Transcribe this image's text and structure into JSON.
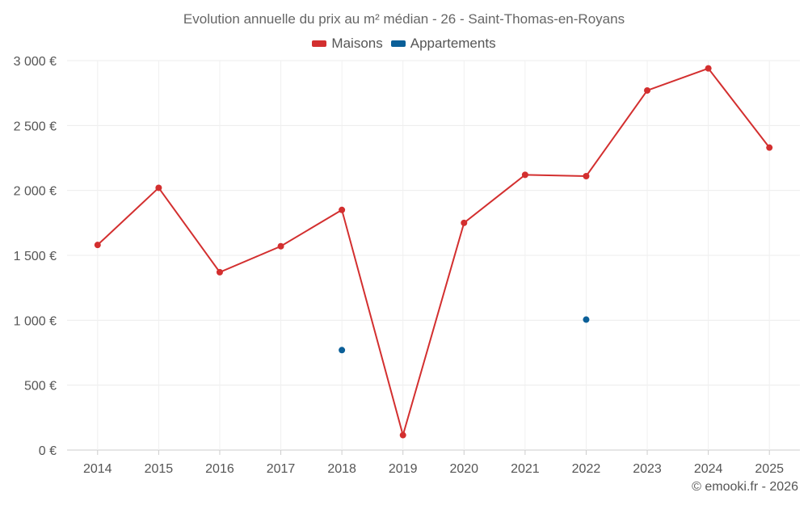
{
  "chart_data": {
    "type": "line",
    "title": "Evolution annuelle du prix au m² médian - 26 - Saint-Thomas-en-Royans",
    "categories": [
      "2014",
      "2015",
      "2016",
      "2017",
      "2018",
      "2019",
      "2020",
      "2021",
      "2022",
      "2023",
      "2024",
      "2025"
    ],
    "ylim": [
      0,
      3000
    ],
    "yticks": [
      0,
      500,
      1000,
      1500,
      2000,
      2500,
      3000
    ],
    "ytick_labels": [
      "0 €",
      "500 €",
      "1 000 €",
      "1 500 €",
      "2 000 €",
      "2 500 €",
      "3 000 €"
    ],
    "xlabel": "",
    "ylabel": "",
    "legend_position": "top-center",
    "grid": true,
    "series": [
      {
        "name": "Maisons",
        "color": "#d32f2f",
        "values": [
          1580,
          2020,
          1370,
          1570,
          1850,
          115,
          1750,
          2120,
          2110,
          2770,
          2940,
          2330
        ]
      },
      {
        "name": "Appartements",
        "color": "#0b5f98",
        "values": [
          null,
          null,
          null,
          null,
          770,
          null,
          null,
          null,
          1005,
          null,
          null,
          null
        ]
      }
    ]
  },
  "credit": "© emooki.fr - 2026"
}
